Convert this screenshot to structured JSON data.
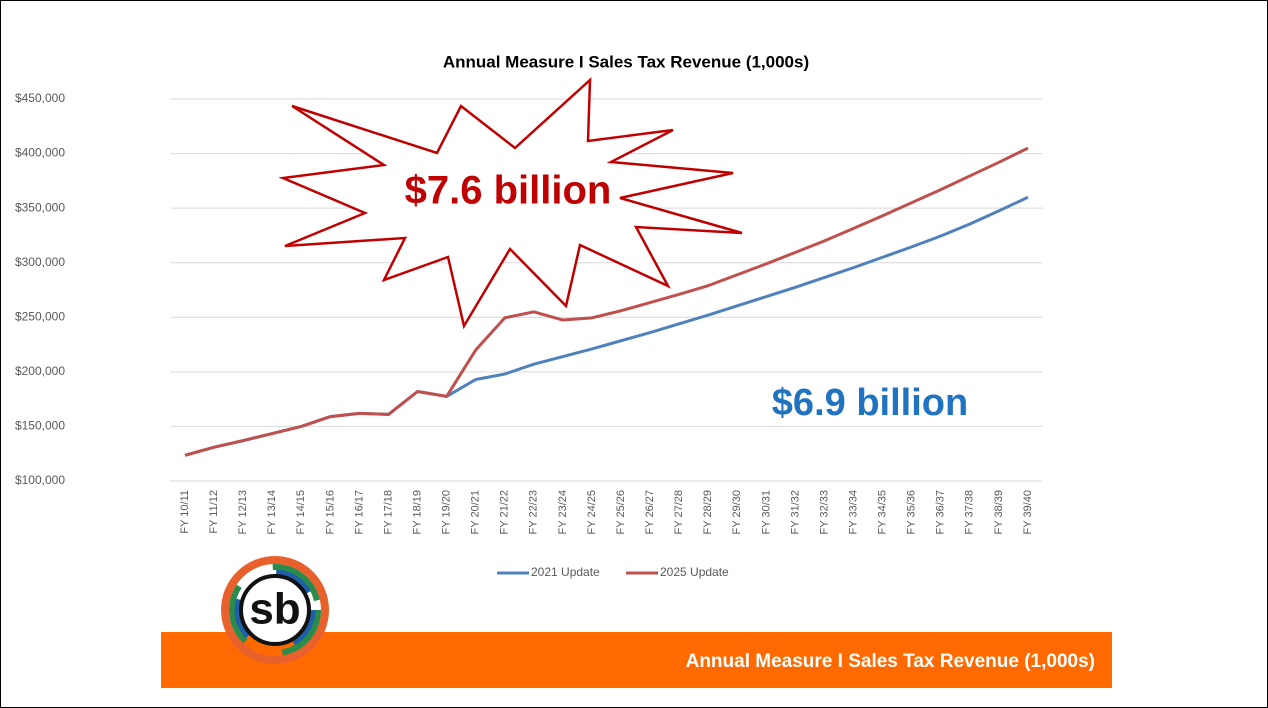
{
  "chart_data": {
    "type": "line",
    "title": "Annual Measure I Sales Tax Revenue (1,000s)",
    "categories": [
      "FY 10/11",
      "FY 11/12",
      "FY 12/13",
      "FY 13/14",
      "FY 14/15",
      "FY 15/16",
      "FY 16/17",
      "FY 17/18",
      "FY 18/19",
      "FY 19/20",
      "FY 20/21",
      "FY 21/22",
      "FY 22/23",
      "FY 23/24",
      "FY 24/25",
      "FY 25/26",
      "FY 26/27",
      "FY 27/28",
      "FY 28/29",
      "FY 29/30",
      "FY 30/31",
      "FY 31/32",
      "FY 32/33",
      "FY 33/34",
      "FY 34/35",
      "FY 35/36",
      "FY 36/37",
      "FY 37/38",
      "FY 38/39",
      "FY 39/40"
    ],
    "series": [
      {
        "name": "2021 Update",
        "color": "#4f81bd",
        "values": [
          123500,
          131000,
          137000,
          143500,
          150000,
          159000,
          162000,
          161000,
          182000,
          177500,
          193000,
          198000,
          207000,
          214000,
          221000,
          228500,
          236000,
          244000,
          252000,
          260500,
          269000,
          277500,
          286500,
          295500,
          305000,
          314500,
          324500,
          335500,
          347500,
          360000
        ]
      },
      {
        "name": "2025 Update",
        "color": "#c0504d",
        "values": [
          123500,
          131000,
          137000,
          143500,
          150000,
          159000,
          162000,
          161000,
          182000,
          177500,
          220000,
          249500,
          255000,
          247500,
          249500,
          256000,
          263500,
          271000,
          279000,
          289000,
          299000,
          309500,
          320000,
          331500,
          343000,
          355000,
          367000,
          379500,
          392000,
          405000
        ]
      }
    ],
    "ylim": [
      100000,
      450000
    ],
    "yticks": [
      {
        "value": 100000,
        "label": "$100,000"
      },
      {
        "value": 150000,
        "label": "$150,000"
      },
      {
        "value": 200000,
        "label": "$200,000"
      },
      {
        "value": 250000,
        "label": "$250,000"
      },
      {
        "value": 300000,
        "label": "$300,000"
      },
      {
        "value": 350000,
        "label": "$350,000"
      },
      {
        "value": 400000,
        "label": "$400,000"
      },
      {
        "value": 450000,
        "label": "$450,000"
      }
    ],
    "grid": true,
    "legend": "bottom",
    "annotations": [
      {
        "text": "$7.6 billion",
        "color": "#c00000"
      },
      {
        "text": "$6.9 billion",
        "color": "#1f73c0"
      }
    ]
  },
  "footer": {
    "title": "Annual Measure I Sales Tax Revenue (1,000s)",
    "logo": "sb"
  }
}
